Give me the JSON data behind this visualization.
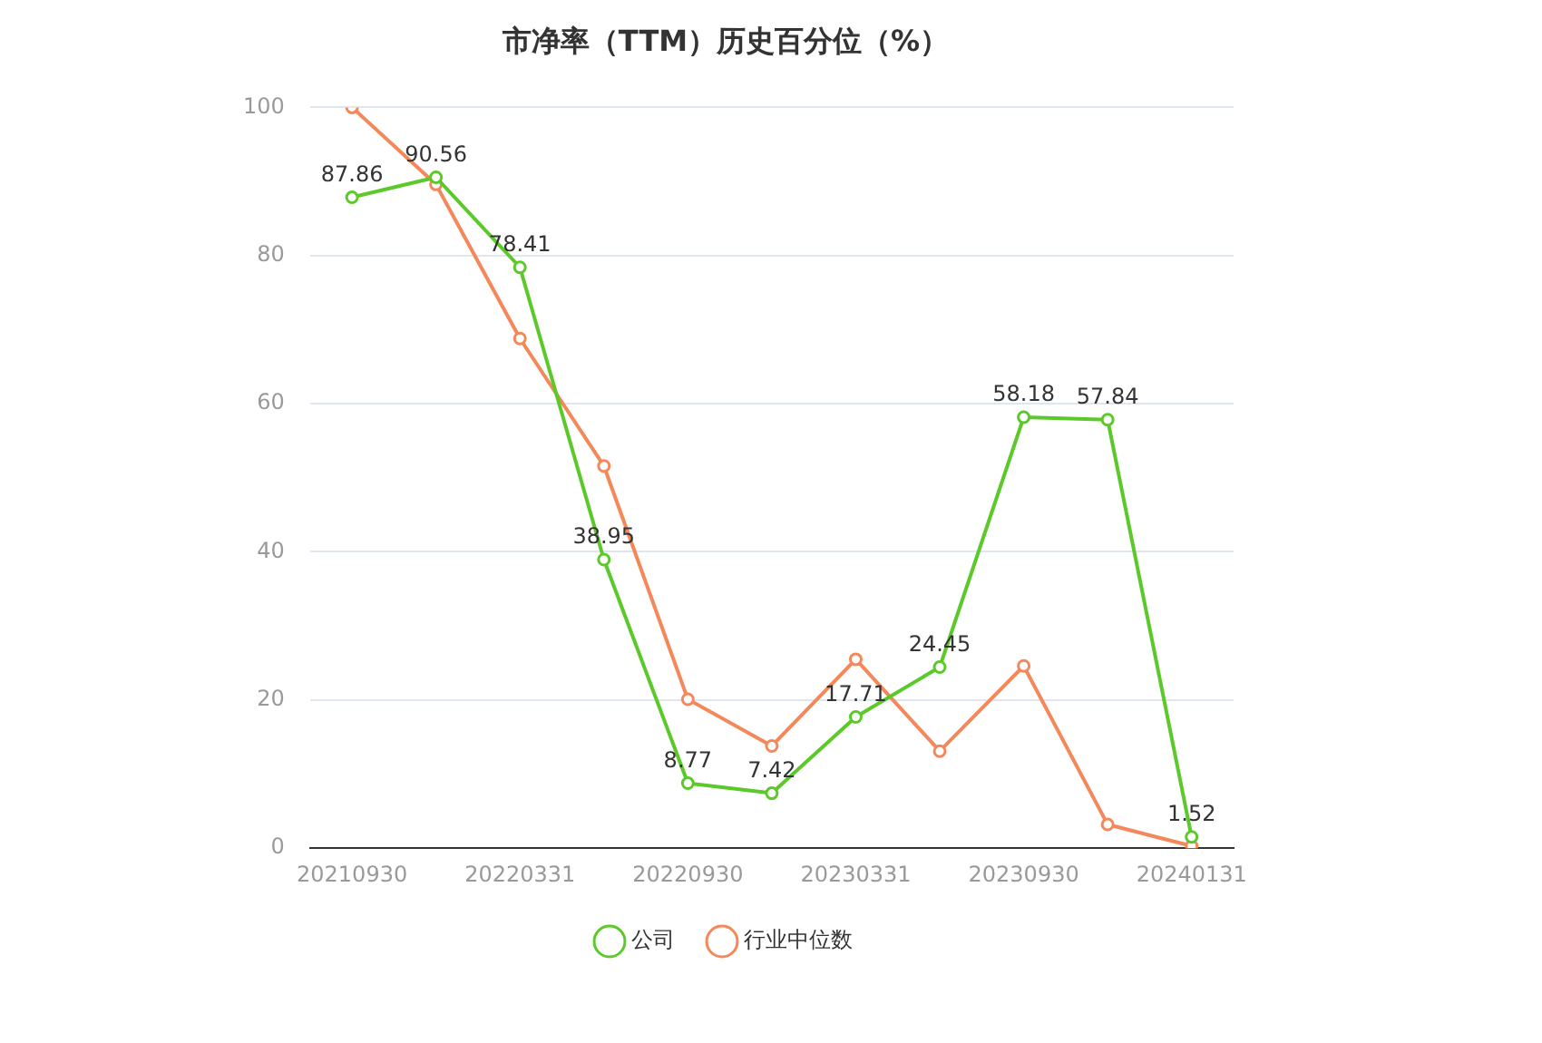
{
  "chart_data": {
    "type": "line",
    "title": "市净率（TTM）历史百分位（%）",
    "categories": [
      "20210930",
      null,
      "20220331",
      null,
      "20220930",
      null,
      "20230331",
      null,
      "20230930",
      null,
      "20240131"
    ],
    "series": [
      {
        "name": "公司",
        "color": "#5cc92a",
        "values": [
          87.86,
          90.56,
          78.41,
          38.95,
          8.77,
          7.42,
          17.71,
          24.45,
          58.18,
          57.84,
          1.52
        ],
        "value_labels": [
          "87.86",
          "90.56",
          "78.41",
          "38.95",
          "8.77",
          "7.42",
          "17.71",
          "24.45",
          "58.18",
          "57.84",
          "1.52"
        ]
      },
      {
        "name": "行业中位数",
        "color": "#f5885a",
        "values": [
          100,
          89.6,
          68.8,
          51.6,
          20.1,
          13.8,
          25.5,
          13.1,
          24.6,
          3.2,
          0.3
        ]
      }
    ],
    "ylim": [
      0,
      100
    ],
    "yticks": [
      0,
      20,
      40,
      60,
      80,
      100
    ],
    "grid": "y",
    "legend": "bottom",
    "marker": "circle"
  }
}
